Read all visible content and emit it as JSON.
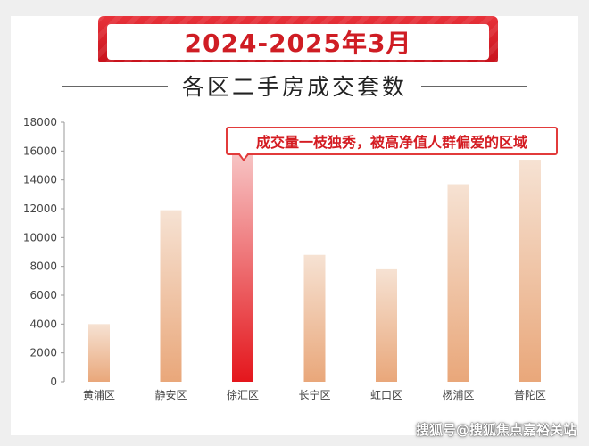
{
  "header": {
    "banner_title": "2024-2025年3月",
    "subtitle": "各区二手房成交套数"
  },
  "annotation": {
    "text": "成交量一枝独秀，被高净值人群偏爱的区域",
    "target_category": "徐汇区"
  },
  "watermark": "搜狐号@搜狐焦点嘉裕关站",
  "colors": {
    "banner_red": "#d41c22",
    "bar_normal_top": "#f6e2d3",
    "bar_normal_bottom": "#e9a77a",
    "bar_highlight_top": "#f7c6c6",
    "bar_highlight_bottom": "#e4161c"
  },
  "chart_data": {
    "type": "bar",
    "categories": [
      "黄浦区",
      "静安区",
      "徐汇区",
      "长宁区",
      "虹口区",
      "杨浦区",
      "普陀区"
    ],
    "values": [
      4000,
      11900,
      16000,
      8800,
      7800,
      13700,
      15400
    ],
    "highlight_index": 2,
    "ylim": [
      0,
      18000
    ],
    "yticks": [
      0,
      2000,
      4000,
      6000,
      8000,
      10000,
      12000,
      14000,
      16000,
      18000
    ],
    "grid": false,
    "title": "各区二手房成交套数",
    "xlabel": "",
    "ylabel": ""
  }
}
